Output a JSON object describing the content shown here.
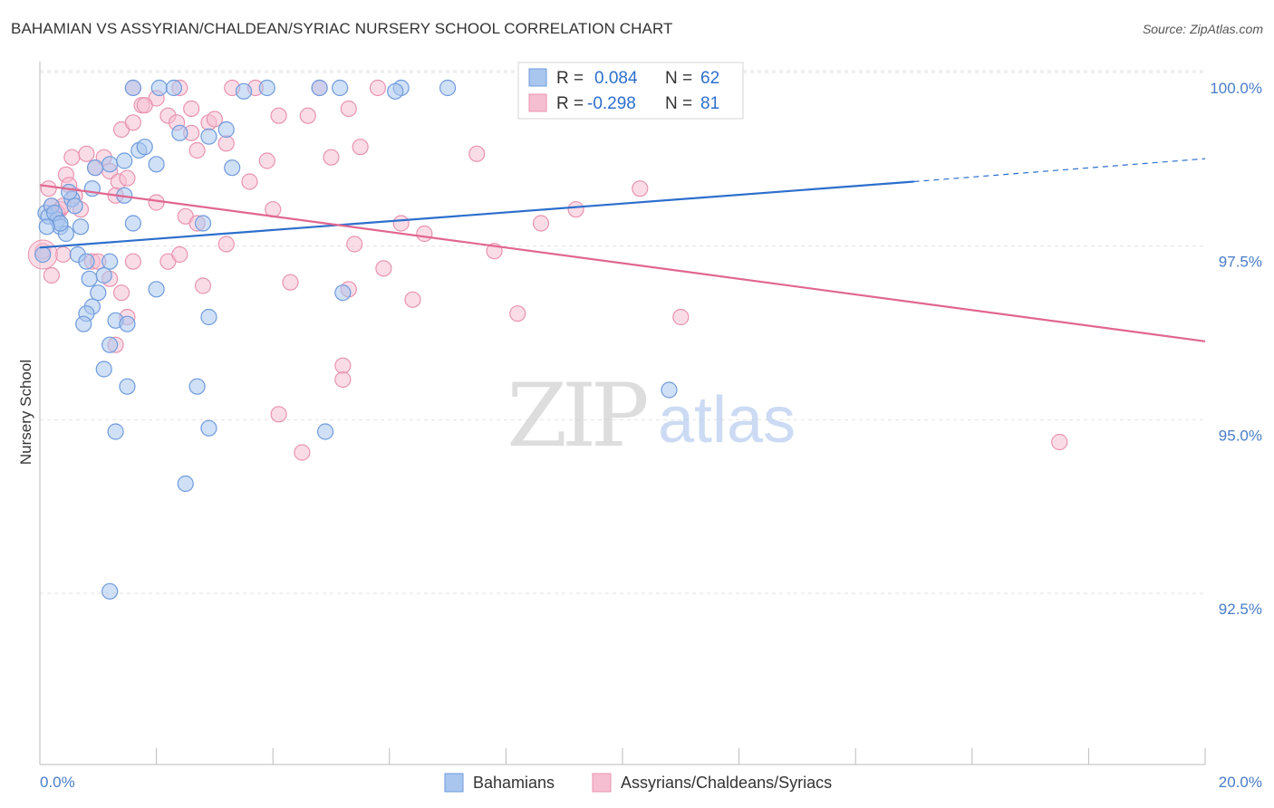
{
  "title": "BAHAMIAN VS ASSYRIAN/CHALDEAN/SYRIAC NURSERY SCHOOL CORRELATION CHART",
  "source": "Source: ZipAtlas.com",
  "watermark": {
    "zip": "ZIP",
    "atlas": "atlas"
  },
  "colors": {
    "blue_fill": "#a9c6ef",
    "blue_stroke": "#6f9bdc",
    "blue_line": "#2d6fcc",
    "pink_fill": "#f6bfd1",
    "pink_stroke": "#e893b0",
    "pink_line": "#e0678f",
    "tick_text": "#4a7cc7",
    "grid": "#e2e2e2"
  },
  "legend_box": {
    "rows": [
      {
        "r_label": "R =",
        "r_value": "0.084",
        "n_label": "N =",
        "n_value": "62",
        "series": "blue"
      },
      {
        "r_label": "R =",
        "r_value": "-0.298",
        "n_label": "N =",
        "n_value": "81",
        "series": "pink"
      }
    ]
  },
  "chart_data": {
    "type": "scatter",
    "title": "BAHAMIAN VS ASSYRIAN/CHALDEAN/SYRIAC NURSERY SCHOOL CORRELATION CHART",
    "xlabel": "",
    "ylabel": "Nursery School",
    "xlim": [
      0.0,
      20.0
    ],
    "ylim": [
      90.5,
      100.5
    ],
    "x_tick_labels": [
      {
        "value": 0.0,
        "label": "0.0%"
      },
      {
        "value": 20.0,
        "label": "20.0%"
      }
    ],
    "y_tick_labels": [
      {
        "value": 100.0,
        "label": "100.0%"
      },
      {
        "value": 97.5,
        "label": "97.5%"
      },
      {
        "value": 95.0,
        "label": "95.0%"
      },
      {
        "value": 92.5,
        "label": "92.5%"
      }
    ],
    "legend": [
      "Bahamians",
      "Assyrians/Chaldeans/Syriacs"
    ],
    "series": [
      {
        "name": "Bahamians",
        "color": "blue",
        "trend": {
          "x0": 0.0,
          "y0": 97.7,
          "x1": 15.0,
          "y1": 98.65,
          "dash_to_x": 20.0,
          "dash_to_y": 98.98
        },
        "points": [
          [
            0.1,
            98.2
          ],
          [
            0.15,
            98.15
          ],
          [
            0.2,
            98.3
          ],
          [
            0.3,
            98.1
          ],
          [
            0.35,
            98.0
          ],
          [
            0.45,
            97.9
          ],
          [
            0.55,
            98.4
          ],
          [
            0.6,
            98.3
          ],
          [
            0.7,
            98.0
          ],
          [
            0.25,
            98.2
          ],
          [
            0.35,
            98.05
          ],
          [
            0.5,
            98.5
          ],
          [
            0.9,
            98.55
          ],
          [
            0.65,
            97.6
          ],
          [
            0.95,
            98.85
          ],
          [
            1.2,
            98.9
          ],
          [
            1.45,
            98.95
          ],
          [
            1.7,
            99.1
          ],
          [
            2.0,
            98.9
          ],
          [
            1.8,
            99.15
          ],
          [
            2.4,
            99.35
          ],
          [
            2.9,
            99.3
          ],
          [
            3.2,
            99.4
          ],
          [
            0.8,
            97.5
          ],
          [
            1.2,
            97.5
          ],
          [
            0.85,
            97.25
          ],
          [
            1.1,
            97.3
          ],
          [
            1.0,
            97.05
          ],
          [
            0.9,
            96.85
          ],
          [
            0.8,
            96.75
          ],
          [
            0.75,
            96.6
          ],
          [
            1.3,
            96.65
          ],
          [
            1.2,
            96.3
          ],
          [
            1.5,
            96.6
          ],
          [
            1.1,
            95.95
          ],
          [
            1.5,
            95.7
          ],
          [
            2.7,
            95.7
          ],
          [
            2.9,
            95.1
          ],
          [
            1.3,
            95.05
          ],
          [
            2.5,
            94.3
          ],
          [
            1.2,
            92.75
          ],
          [
            3.3,
            98.85
          ],
          [
            2.0,
            97.1
          ],
          [
            2.9,
            96.7
          ],
          [
            1.45,
            98.45
          ],
          [
            1.6,
            98.05
          ],
          [
            2.8,
            98.05
          ],
          [
            0.05,
            97.6
          ],
          [
            0.12,
            98.0
          ],
          [
            3.5,
            99.95
          ],
          [
            1.6,
            100.0
          ],
          [
            2.05,
            100.0
          ],
          [
            2.3,
            100.0
          ],
          [
            3.9,
            100.0
          ],
          [
            4.8,
            100.0
          ],
          [
            5.15,
            100.0
          ],
          [
            6.2,
            100.0
          ],
          [
            6.1,
            99.95
          ],
          [
            7.0,
            100.0
          ],
          [
            5.2,
            97.05
          ],
          [
            4.9,
            95.05
          ],
          [
            10.8,
            95.65
          ]
        ]
      },
      {
        "name": "Assyrians/Chaldeans/Syriacs",
        "color": "pink",
        "trend": {
          "x0": 0.0,
          "y0": 98.6,
          "x1": 20.0,
          "y1": 96.35
        },
        "points": [
          [
            0.15,
            98.55
          ],
          [
            0.2,
            98.3
          ],
          [
            0.3,
            98.2
          ],
          [
            0.35,
            98.25
          ],
          [
            0.45,
            98.75
          ],
          [
            0.5,
            98.6
          ],
          [
            0.6,
            98.45
          ],
          [
            0.7,
            98.25
          ],
          [
            0.55,
            99.0
          ],
          [
            0.8,
            99.05
          ],
          [
            0.95,
            98.85
          ],
          [
            1.2,
            98.8
          ],
          [
            1.35,
            98.65
          ],
          [
            1.5,
            98.7
          ],
          [
            1.1,
            99.0
          ],
          [
            1.4,
            99.4
          ],
          [
            1.6,
            99.5
          ],
          [
            1.75,
            99.75
          ],
          [
            2.0,
            99.85
          ],
          [
            2.2,
            99.6
          ],
          [
            2.35,
            99.5
          ],
          [
            2.6,
            99.35
          ],
          [
            2.7,
            99.1
          ],
          [
            2.9,
            99.5
          ],
          [
            3.0,
            99.55
          ],
          [
            3.2,
            99.2
          ],
          [
            3.6,
            98.65
          ],
          [
            4.0,
            98.25
          ],
          [
            4.6,
            99.6
          ],
          [
            5.0,
            99.0
          ],
          [
            5.5,
            99.15
          ],
          [
            7.5,
            99.05
          ],
          [
            2.5,
            98.15
          ],
          [
            2.7,
            98.05
          ],
          [
            0.9,
            97.5
          ],
          [
            1.2,
            97.25
          ],
          [
            1.4,
            97.05
          ],
          [
            1.5,
            96.7
          ],
          [
            1.6,
            97.5
          ],
          [
            2.2,
            97.5
          ],
          [
            2.4,
            97.6
          ],
          [
            2.8,
            97.15
          ],
          [
            3.2,
            97.75
          ],
          [
            0.2,
            97.3
          ],
          [
            0.4,
            97.6
          ],
          [
            1.0,
            97.5
          ],
          [
            4.3,
            97.2
          ],
          [
            5.3,
            97.1
          ],
          [
            5.9,
            97.4
          ],
          [
            6.4,
            96.95
          ],
          [
            8.2,
            96.75
          ],
          [
            8.6,
            98.05
          ],
          [
            7.8,
            97.65
          ],
          [
            9.2,
            98.25
          ],
          [
            10.3,
            98.55
          ],
          [
            11.0,
            96.7
          ],
          [
            5.2,
            96.0
          ],
          [
            5.2,
            95.8
          ],
          [
            4.1,
            95.3
          ],
          [
            4.5,
            94.75
          ],
          [
            5.4,
            97.75
          ],
          [
            6.2,
            98.05
          ],
          [
            6.6,
            97.9
          ],
          [
            3.9,
            98.95
          ],
          [
            1.3,
            96.3
          ],
          [
            2.0,
            98.35
          ],
          [
            0.3,
            98.2
          ],
          [
            0.4,
            98.3
          ],
          [
            17.5,
            94.9
          ],
          [
            1.6,
            100.0
          ],
          [
            2.4,
            100.0
          ],
          [
            2.6,
            99.7
          ],
          [
            3.3,
            100.0
          ],
          [
            3.7,
            100.0
          ],
          [
            4.1,
            99.6
          ],
          [
            4.8,
            100.0
          ],
          [
            5.3,
            99.7
          ],
          [
            5.8,
            100.0
          ],
          [
            1.8,
            99.75
          ],
          [
            1.3,
            98.45
          ],
          [
            0.05,
            97.65
          ]
        ]
      }
    ]
  }
}
